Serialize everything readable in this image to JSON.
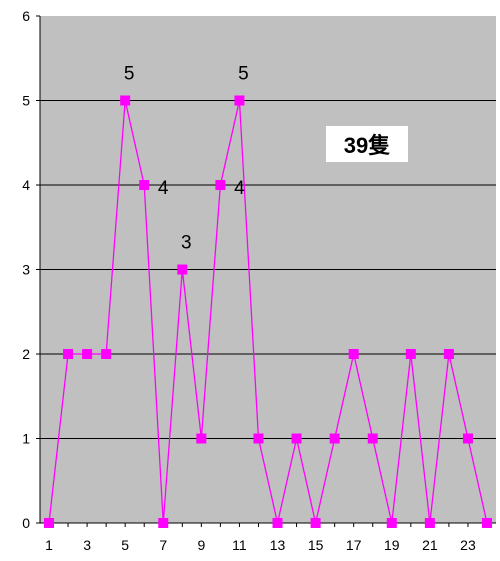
{
  "chart_data": {
    "type": "line",
    "x": [
      1,
      2,
      3,
      4,
      5,
      6,
      7,
      8,
      9,
      10,
      11,
      12,
      13,
      14,
      15,
      16,
      17,
      18,
      19,
      20,
      21,
      22,
      23,
      24
    ],
    "x_tick_labels": [
      "1",
      "3",
      "5",
      "7",
      "9",
      "11",
      "13",
      "15",
      "17",
      "19",
      "21",
      "23"
    ],
    "y_tick_labels": [
      "0",
      "1",
      "2",
      "3",
      "4",
      "5",
      "6"
    ],
    "series": [
      {
        "values": [
          0,
          2,
          2,
          2,
          5,
          4,
          0,
          3,
          1,
          4,
          5,
          1,
          0,
          1,
          0,
          1,
          2,
          1,
          0,
          2,
          0,
          2,
          1,
          0
        ]
      }
    ],
    "ylim": [
      0,
      6
    ],
    "grid": true,
    "annotations": [
      {
        "x": 5,
        "y": 5,
        "text": "5"
      },
      {
        "x": 6,
        "y": 4,
        "text": "4"
      },
      {
        "x": 8,
        "y": 3,
        "text": "3"
      },
      {
        "x": 10,
        "y": 4,
        "text": "4"
      },
      {
        "x": 11,
        "y": 5,
        "text": "5"
      }
    ],
    "callout": "39隻",
    "colors": {
      "plot_background": "#c0c0c0",
      "series": "#ff00ff",
      "gridline": "#000000",
      "callout_background": "#ffffff"
    }
  }
}
